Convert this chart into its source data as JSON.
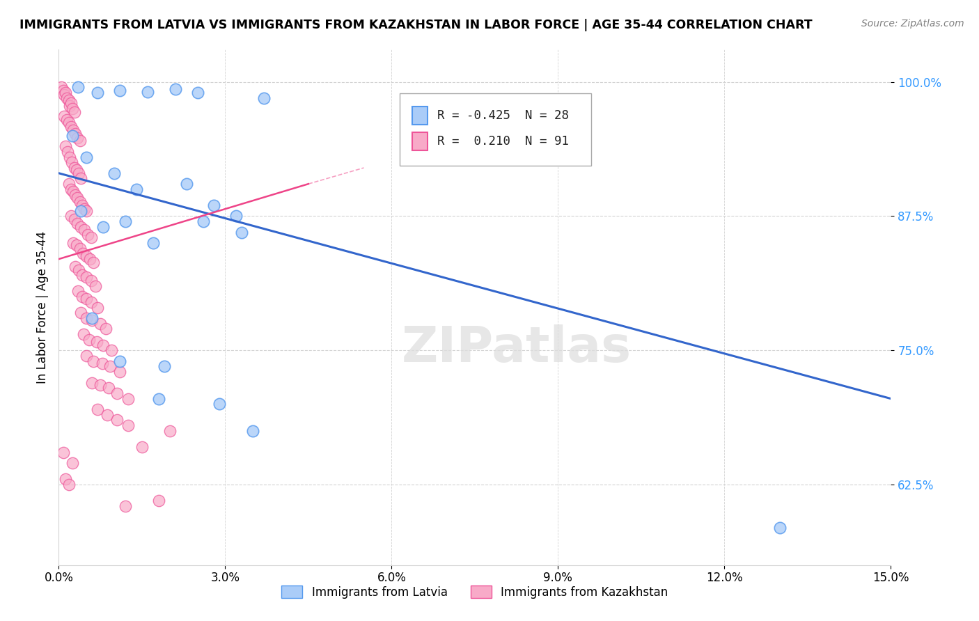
{
  "title": "IMMIGRANTS FROM LATVIA VS IMMIGRANTS FROM KAZAKHSTAN IN LABOR FORCE | AGE 35-44 CORRELATION CHART",
  "source": "Source: ZipAtlas.com",
  "ylabel": "In Labor Force | Age 35-44",
  "xlim": [
    0.0,
    15.0
  ],
  "ylim": [
    55.0,
    103.0
  ],
  "yticks": [
    62.5,
    75.0,
    87.5,
    100.0
  ],
  "ytick_labels": [
    "62.5%",
    "75.0%",
    "87.5%",
    "100.0%"
  ],
  "xticks": [
    0.0,
    3.0,
    6.0,
    9.0,
    12.0,
    15.0
  ],
  "xtick_labels": [
    "0.0%",
    "3.0%",
    "6.0%",
    "9.0%",
    "12.0%",
    "15.0%"
  ],
  "r_latvia": -0.425,
  "n_latvia": 28,
  "r_kazakhstan": 0.21,
  "n_kazakhstan": 91,
  "latvia_color": "#aaccf8",
  "latvia_edge": "#5599ee",
  "kazakhstan_color": "#f8aac8",
  "kazakhstan_edge": "#ee5599",
  "trend_latvia_color": "#3366cc",
  "trend_kazakhstan_color": "#ee4488",
  "watermark_text": "ZIPatlas",
  "legend_label_latvia": "Immigrants from Latvia",
  "legend_label_kazakhstan": "Immigrants from Kazakhstan",
  "trend_lv_x0": 0.0,
  "trend_lv_y0": 91.5,
  "trend_lv_x1": 15.0,
  "trend_lv_y1": 70.5,
  "trend_kz_x0": 0.0,
  "trend_kz_y0": 83.5,
  "trend_kz_x1": 4.5,
  "trend_kz_y1": 90.5,
  "trend_kz_dashed_x0": 0.0,
  "trend_kz_dashed_y0": 83.5,
  "trend_kz_dashed_x1": 5.5,
  "trend_kz_dashed_y1": 92.0
}
